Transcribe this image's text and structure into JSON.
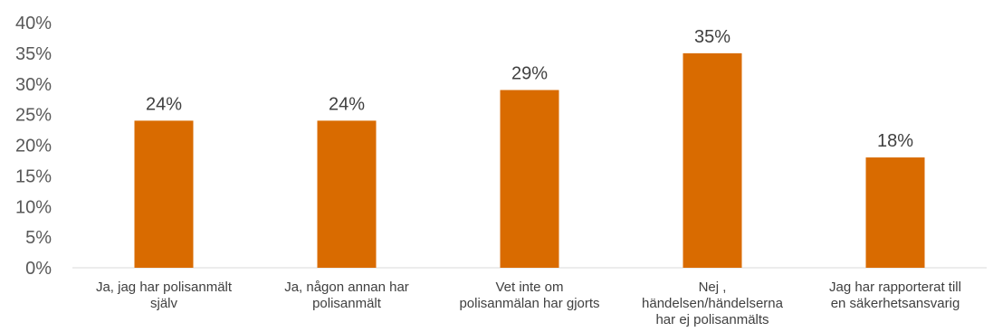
{
  "chart_data": {
    "type": "bar",
    "title": "",
    "xlabel": "",
    "ylabel": "",
    "ylim": [
      0,
      40
    ],
    "yticks": [
      "0%",
      "5%",
      "10%",
      "15%",
      "20%",
      "25%",
      "30%",
      "35%",
      "40%"
    ],
    "grid": false,
    "legend": "none",
    "bar_color": "#d96b00",
    "categories": [
      [
        "Ja, jag har polisanmält",
        "själv"
      ],
      [
        "Ja, någon annan har",
        "polisanmält"
      ],
      [
        "Vet inte om",
        "polisanmälan har gjorts"
      ],
      [
        "Nej ,",
        "händelsen/händelserna",
        "har ej polisanmälts"
      ],
      [
        "Jag har rapporterat till",
        "en säkerhetsansvarig"
      ]
    ],
    "values": [
      24,
      24,
      29,
      35,
      18
    ],
    "data_labels": [
      "24%",
      "24%",
      "29%",
      "35%",
      "18%"
    ]
  }
}
